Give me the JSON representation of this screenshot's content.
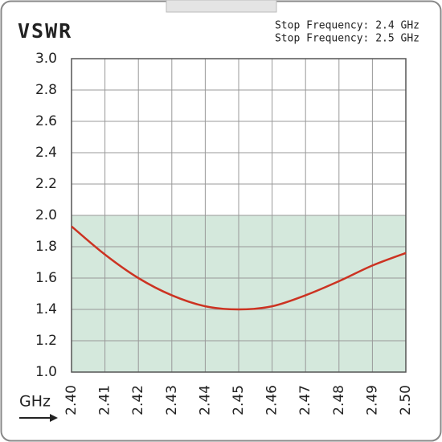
{
  "chart_data": {
    "type": "line",
    "title": "VSWR",
    "annotations": [
      "Stop Frequency: 2.4 GHz",
      "Stop Frequency: 2.5 GHz"
    ],
    "x_label": "GHz",
    "x": [
      2.4,
      2.41,
      2.42,
      2.43,
      2.44,
      2.45,
      2.46,
      2.47,
      2.48,
      2.49,
      2.5
    ],
    "series": [
      {
        "name": "VSWR",
        "color": "#cc3322",
        "values": [
          1.93,
          1.75,
          1.6,
          1.49,
          1.42,
          1.4,
          1.42,
          1.49,
          1.58,
          1.68,
          1.76
        ]
      }
    ],
    "xlim": [
      2.4,
      2.5
    ],
    "xticks": [
      {
        "value": 2.4,
        "label": "2.40"
      },
      2.41,
      2.42,
      2.43,
      2.44,
      2.45,
      2.46,
      2.47,
      2.48,
      2.49,
      {
        "value": 2.5,
        "label": "2.50"
      }
    ],
    "ylim": [
      1.0,
      3.0
    ],
    "yticks": [
      {
        "value": 1,
        "label": "1.0"
      },
      1.2,
      1.4,
      1.6,
      1.8,
      {
        "value": 2,
        "label": "2.0"
      },
      2.2,
      2.4,
      2.6,
      2.8,
      {
        "value": 3,
        "label": "3.0"
      }
    ],
    "shade_below": 2,
    "shade_color": "#d4e8dc",
    "grid": true
  }
}
